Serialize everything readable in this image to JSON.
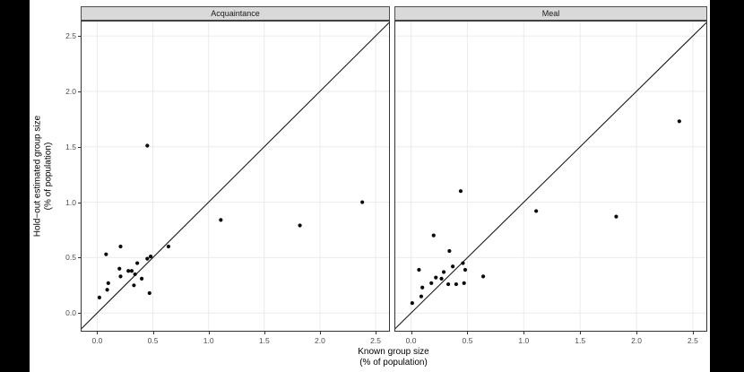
{
  "window": {
    "background": "#000000"
  },
  "figure": {
    "background": "#ffffff",
    "colors": {
      "strip_bg": "#d9d9d9",
      "strip_border": "#4d4d4d",
      "panel_border": "#333333",
      "grid": "#ebebeb",
      "point": "#0a0a0a",
      "ref_line": "#1a1a1a",
      "tick_label": "#4d4d4d",
      "axis_title": "#000000"
    }
  },
  "axes": {
    "x_title_line1": "Known group size",
    "x_title_line2": "(% of population)",
    "y_title_line1": "Hold−out estimated group size",
    "y_title_line2": "(% of population)",
    "x_ticks": [
      "0.0",
      "0.5",
      "1.0",
      "1.5",
      "2.0",
      "2.5"
    ],
    "y_ticks": [
      "0.0",
      "0.5",
      "1.0",
      "1.5",
      "2.0",
      "2.5"
    ],
    "x_tick_values": [
      0,
      0.5,
      1,
      1.5,
      2,
      2.5
    ],
    "y_tick_values": [
      0,
      0.5,
      1,
      1.5,
      2,
      2.5
    ],
    "x_range": [
      -0.14,
      2.62
    ],
    "y_range": [
      -0.16,
      2.63
    ]
  },
  "chart_data": [
    {
      "type": "scatter",
      "facet": "Acquaintance",
      "xlabel": "Known group size (% of population)",
      "ylabel": "Hold−out estimated group size (% of population)",
      "xlim": [
        -0.14,
        2.62
      ],
      "ylim": [
        -0.16,
        2.63
      ],
      "grid": "major only",
      "legend": "none",
      "reference_line": "y = x",
      "points": [
        [
          0.02,
          0.14
        ],
        [
          0.08,
          0.53
        ],
        [
          0.09,
          0.21
        ],
        [
          0.1,
          0.27
        ],
        [
          0.2,
          0.4
        ],
        [
          0.21,
          0.6
        ],
        [
          0.21,
          0.33
        ],
        [
          0.28,
          0.38
        ],
        [
          0.31,
          0.38
        ],
        [
          0.34,
          0.35
        ],
        [
          0.33,
          0.25
        ],
        [
          0.36,
          0.45
        ],
        [
          0.4,
          0.31
        ],
        [
          0.45,
          1.51
        ],
        [
          0.45,
          0.49
        ],
        [
          0.48,
          0.51
        ],
        [
          0.47,
          0.18
        ],
        [
          0.64,
          0.6
        ],
        [
          1.11,
          0.84
        ],
        [
          1.82,
          0.79
        ],
        [
          2.38,
          1.0
        ]
      ]
    },
    {
      "type": "scatter",
      "facet": "Meal",
      "xlabel": "Known group size (% of population)",
      "ylabel": "Hold−out estimated group size (% of population)",
      "xlim": [
        -0.14,
        2.62
      ],
      "ylim": [
        -0.16,
        2.63
      ],
      "grid": "major only",
      "legend": "none",
      "reference_line": "y = x",
      "points": [
        [
          0.01,
          0.09
        ],
        [
          0.07,
          0.39
        ],
        [
          0.09,
          0.15
        ],
        [
          0.1,
          0.23
        ],
        [
          0.18,
          0.27
        ],
        [
          0.2,
          0.7
        ],
        [
          0.22,
          0.32
        ],
        [
          0.27,
          0.31
        ],
        [
          0.29,
          0.37
        ],
        [
          0.33,
          0.26
        ],
        [
          0.34,
          0.56
        ],
        [
          0.37,
          0.42
        ],
        [
          0.4,
          0.26
        ],
        [
          0.44,
          1.1
        ],
        [
          0.46,
          0.45
        ],
        [
          0.47,
          0.27
        ],
        [
          0.48,
          0.39
        ],
        [
          0.64,
          0.33
        ],
        [
          1.11,
          0.92
        ],
        [
          1.82,
          0.87
        ],
        [
          2.38,
          1.73
        ]
      ]
    }
  ]
}
